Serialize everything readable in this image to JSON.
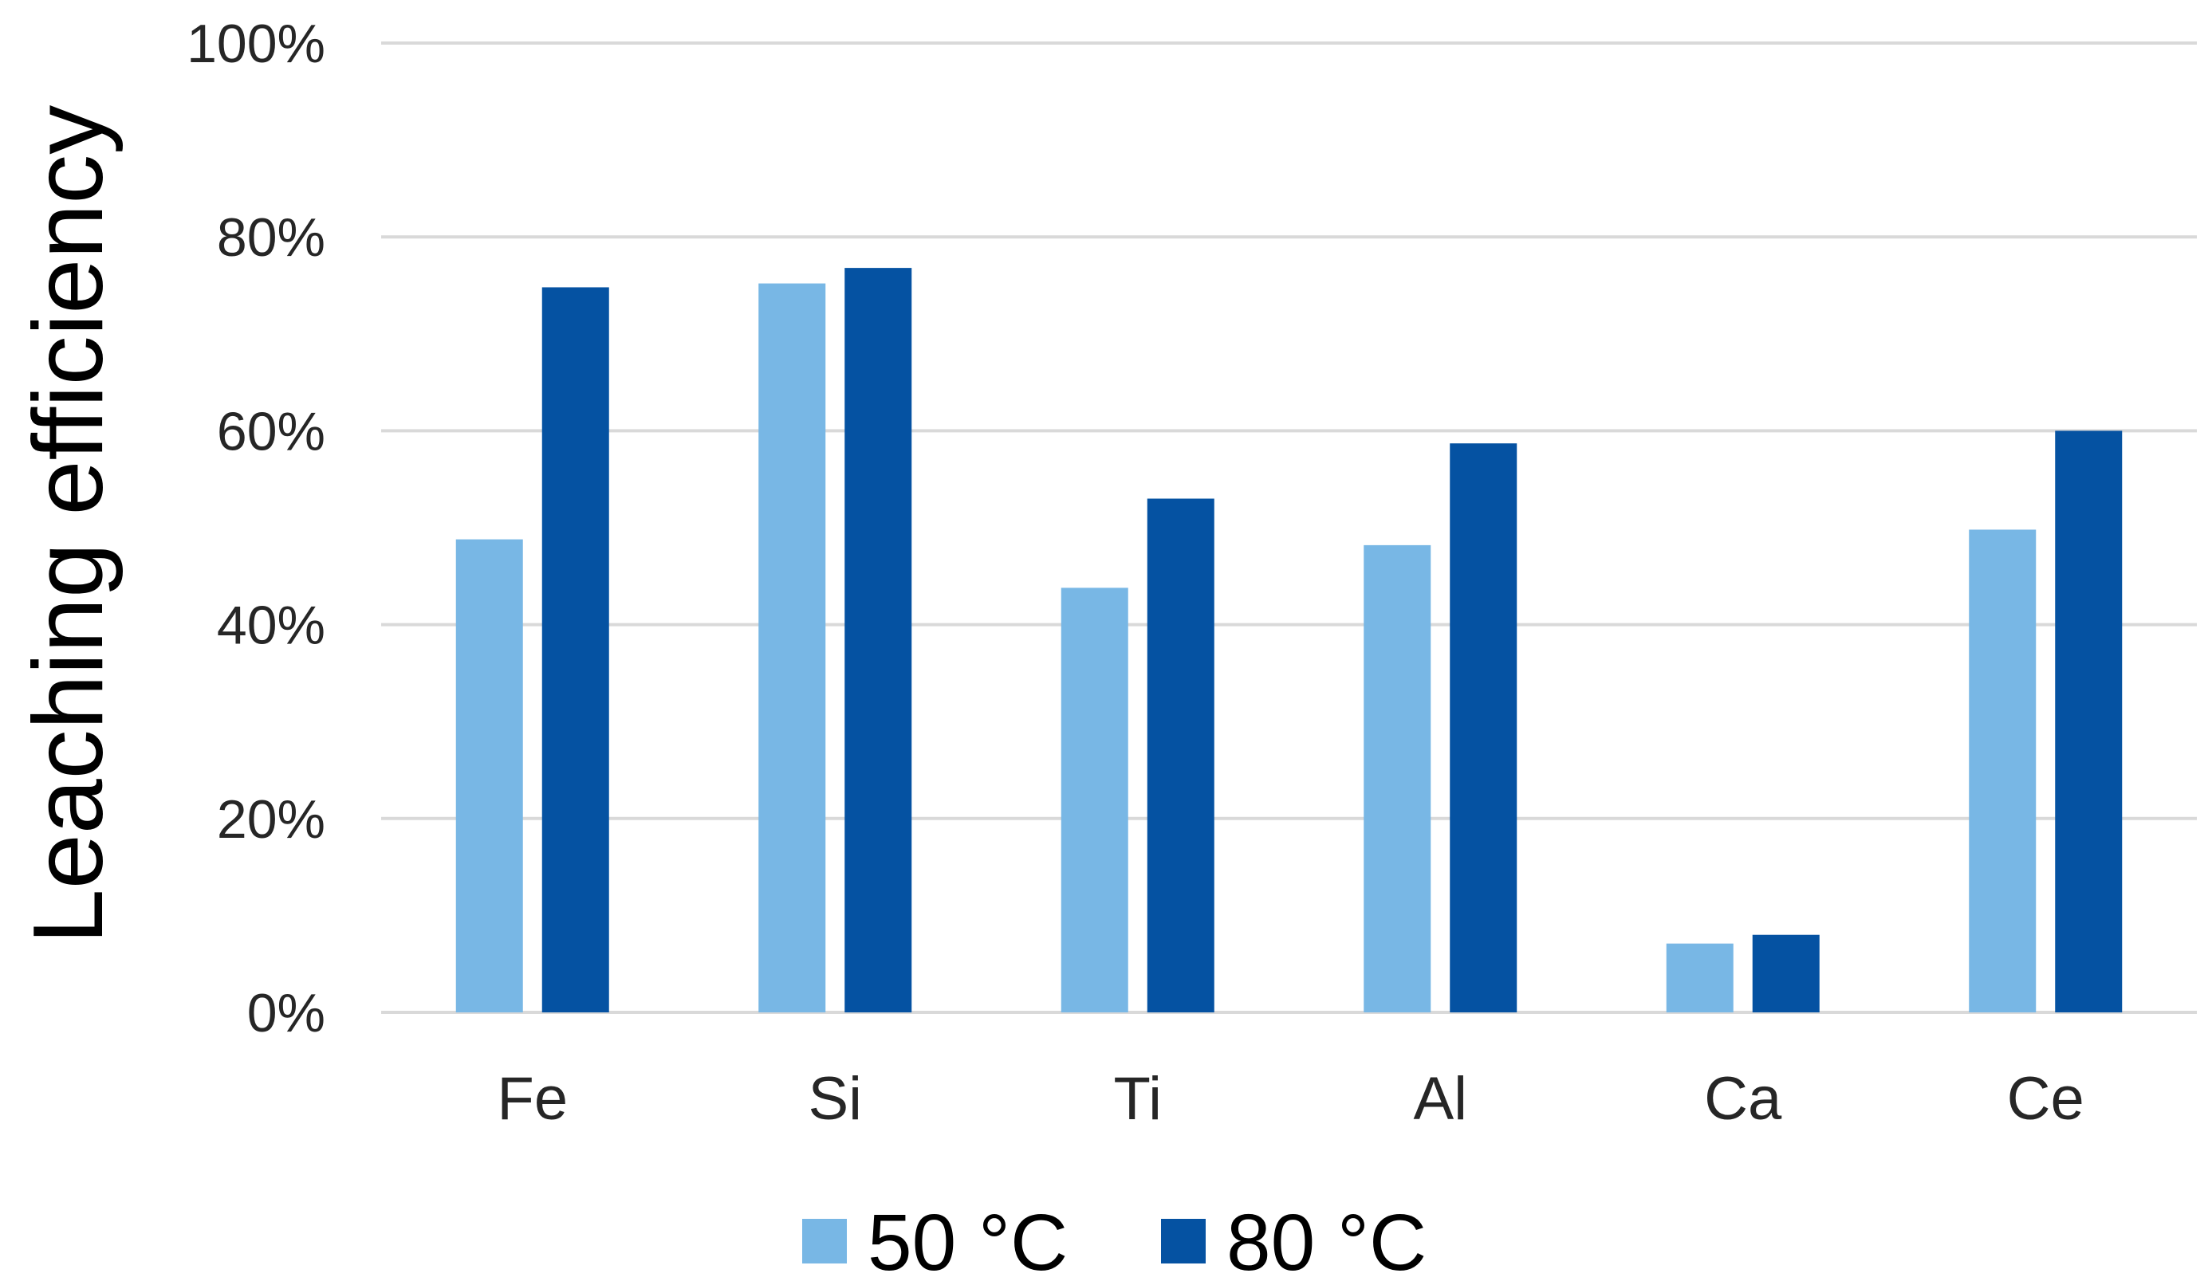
{
  "chart_data": {
    "type": "bar",
    "title": "",
    "xlabel": "",
    "ylabel": "Leaching efficiency",
    "ylim": [
      0,
      100
    ],
    "y_ticks": [
      "0%",
      "20%",
      "40%",
      "60%",
      "80%",
      "100%"
    ],
    "y_tick_values": [
      0,
      20,
      40,
      60,
      80,
      100
    ],
    "grid": "horizontal",
    "legend_position": "bottom",
    "categories": [
      "Fe",
      "Si",
      "Ti",
      "Al",
      "Ca",
      "Ce"
    ],
    "series": [
      {
        "name": "50 °C",
        "color": "#78b7e5",
        "values": [
          48.8,
          75.2,
          43.8,
          48.2,
          7.1,
          49.8
        ]
      },
      {
        "name": "80 °C",
        "color": "#0552a2",
        "values": [
          74.8,
          76.8,
          53.0,
          58.7,
          8.0,
          60.0
        ]
      }
    ]
  },
  "colors": {
    "gridline": "#d9d9d9",
    "tick_text": "#262626"
  }
}
